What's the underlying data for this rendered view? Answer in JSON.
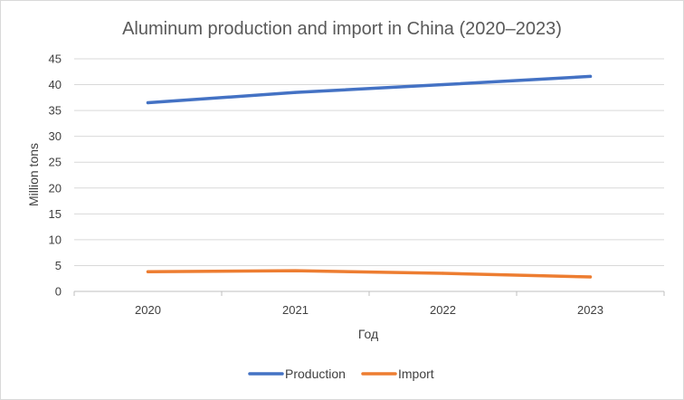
{
  "chart_data": {
    "type": "line",
    "title": "Aluminum production and import in China (2020–2023)",
    "xlabel": "Год",
    "ylabel": "Million tons",
    "categories": [
      "2020",
      "2021",
      "2022",
      "2023"
    ],
    "ylim": [
      0,
      45
    ],
    "yticks": [
      0,
      5,
      10,
      15,
      20,
      25,
      30,
      35,
      40,
      45
    ],
    "grid": true,
    "legend_position": "bottom",
    "series": [
      {
        "name": "Production",
        "color": "#4472c4",
        "values": [
          36.5,
          38.5,
          40.0,
          41.6
        ]
      },
      {
        "name": "Import",
        "color": "#ed7d31",
        "values": [
          3.8,
          4.0,
          3.5,
          2.8
        ]
      }
    ]
  }
}
